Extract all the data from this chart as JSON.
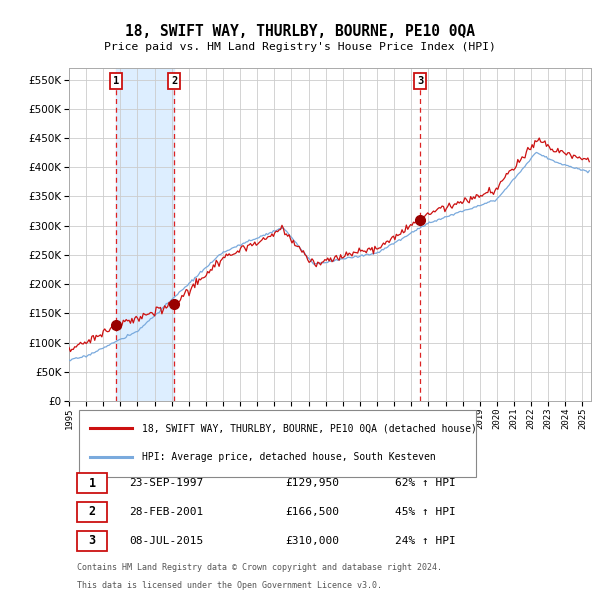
{
  "title": "18, SWIFT WAY, THURLBY, BOURNE, PE10 0QA",
  "subtitle": "Price paid vs. HM Land Registry's House Price Index (HPI)",
  "ylim": [
    0,
    570000
  ],
  "yticks": [
    0,
    50000,
    100000,
    150000,
    200000,
    250000,
    300000,
    350000,
    400000,
    450000,
    500000,
    550000
  ],
  "xlim_start": 1995.0,
  "xlim_end": 2025.5,
  "sale_dates": [
    1997.73,
    2001.16,
    2015.52
  ],
  "sale_prices": [
    129950,
    166500,
    310000
  ],
  "sale_labels": [
    "1",
    "2",
    "3"
  ],
  "vline_color": "#dd2222",
  "sale_marker_color": "#990000",
  "hpi_line_color": "#7aaadd",
  "price_line_color": "#cc1111",
  "shade_color": "#ddeeff",
  "legend_label_price": "18, SWIFT WAY, THURLBY, BOURNE, PE10 0QA (detached house)",
  "legend_label_hpi": "HPI: Average price, detached house, South Kesteven",
  "table_entries": [
    {
      "num": "1",
      "date": "23-SEP-1997",
      "price": "£129,950",
      "pct": "62% ↑ HPI"
    },
    {
      "num": "2",
      "date": "28-FEB-2001",
      "price": "£166,500",
      "pct": "45% ↑ HPI"
    },
    {
      "num": "3",
      "date": "08-JUL-2015",
      "price": "£310,000",
      "pct": "24% ↑ HPI"
    }
  ],
  "footnote1": "Contains HM Land Registry data © Crown copyright and database right 2024.",
  "footnote2": "This data is licensed under the Open Government Licence v3.0.",
  "background_color": "#ffffff",
  "grid_color": "#cccccc"
}
